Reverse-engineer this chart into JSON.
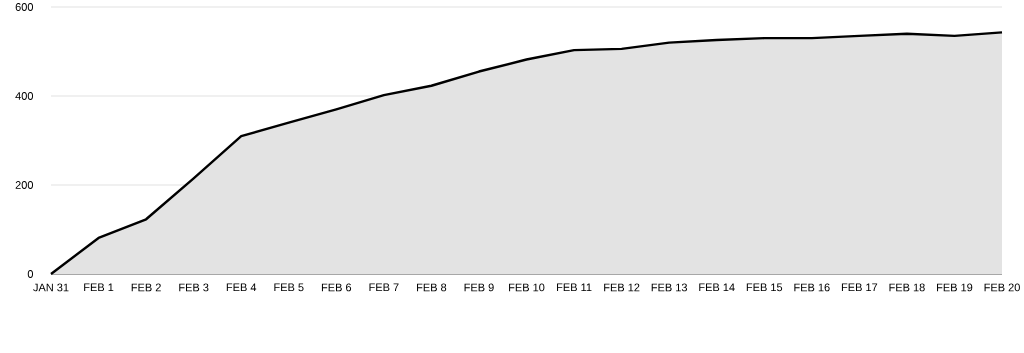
{
  "chart_data": {
    "type": "area",
    "categories": [
      "JAN 31",
      "FEB 1",
      "FEB 2",
      "FEB 3",
      "FEB 4",
      "FEB 5",
      "FEB 6",
      "FEB 7",
      "FEB 8",
      "FEB 9",
      "FEB 10",
      "FEB 11",
      "FEB 12",
      "FEB 13",
      "FEB 14",
      "FEB 15",
      "FEB 16",
      "FEB 17",
      "FEB 18",
      "FEB 19",
      "FEB 20"
    ],
    "series": [
      {
        "color": "#000000",
        "values": [
          0,
          81,
          123,
          215,
          310,
          340,
          370,
          402,
          423,
          455,
          482,
          503,
          506,
          520,
          526,
          530,
          530,
          535,
          540,
          535,
          543
        ]
      }
    ],
    "ylim": [
      0,
      600
    ],
    "yticks": [
      0,
      200,
      400,
      600
    ],
    "grid": "y"
  }
}
